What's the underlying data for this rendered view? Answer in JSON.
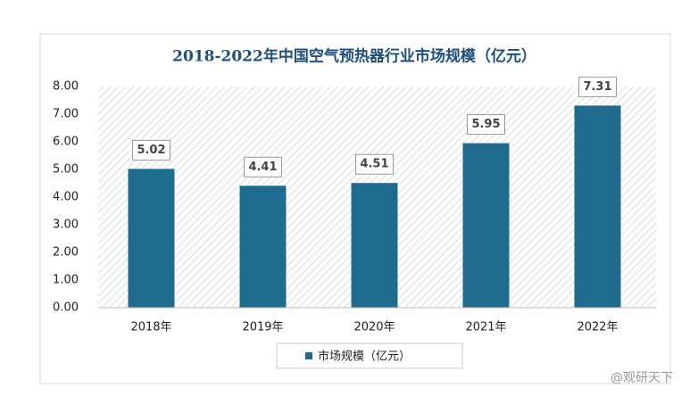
{
  "chart_data": {
    "type": "bar",
    "title": "2018-2022年中国空气预热器行业市场规模（亿元）",
    "categories": [
      "2018年",
      "2019年",
      "2020年",
      "2021年",
      "2022年"
    ],
    "series": [
      {
        "name": "市场规模（亿元）",
        "color": "#1f6b8e",
        "values": [
          5.02,
          4.41,
          4.51,
          5.95,
          7.31
        ]
      }
    ],
    "ylim": [
      0,
      8
    ],
    "yticks": [
      {
        "value": 0,
        "label": "0.00"
      },
      {
        "value": 1,
        "label": "1.00"
      },
      {
        "value": 2,
        "label": "2.00"
      },
      {
        "value": 3,
        "label": "3.00"
      },
      {
        "value": 4,
        "label": "4.00"
      },
      {
        "value": 5,
        "label": "5.00"
      },
      {
        "value": 6,
        "label": "6.00"
      },
      {
        "value": 7,
        "label": "7.00"
      },
      {
        "value": 8,
        "label": "8.00"
      }
    ],
    "legend": "bottom",
    "watermark": "@观研天下"
  }
}
